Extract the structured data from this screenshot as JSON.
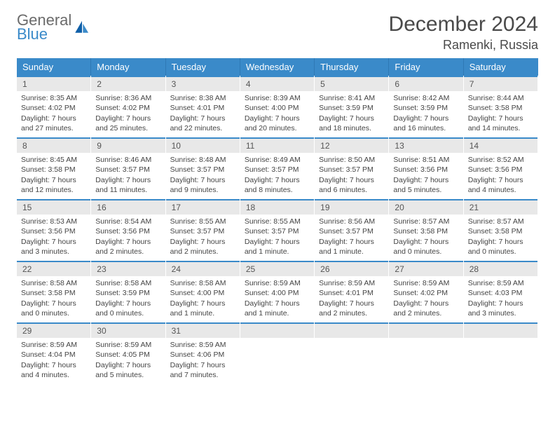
{
  "logo": {
    "line1": "General",
    "line2": "Blue"
  },
  "title": "December 2024",
  "location": "Ramenki, Russia",
  "colors": {
    "header_bg": "#3a8ac9",
    "daynum_bg": "#e8e8e8",
    "text": "#444444",
    "title_text": "#4a4a4a"
  },
  "weekdays": [
    "Sunday",
    "Monday",
    "Tuesday",
    "Wednesday",
    "Thursday",
    "Friday",
    "Saturday"
  ],
  "days": [
    {
      "n": "1",
      "sunrise": "8:35 AM",
      "sunset": "4:02 PM",
      "daylight": "7 hours and 27 minutes."
    },
    {
      "n": "2",
      "sunrise": "8:36 AM",
      "sunset": "4:02 PM",
      "daylight": "7 hours and 25 minutes."
    },
    {
      "n": "3",
      "sunrise": "8:38 AM",
      "sunset": "4:01 PM",
      "daylight": "7 hours and 22 minutes."
    },
    {
      "n": "4",
      "sunrise": "8:39 AM",
      "sunset": "4:00 PM",
      "daylight": "7 hours and 20 minutes."
    },
    {
      "n": "5",
      "sunrise": "8:41 AM",
      "sunset": "3:59 PM",
      "daylight": "7 hours and 18 minutes."
    },
    {
      "n": "6",
      "sunrise": "8:42 AM",
      "sunset": "3:59 PM",
      "daylight": "7 hours and 16 minutes."
    },
    {
      "n": "7",
      "sunrise": "8:44 AM",
      "sunset": "3:58 PM",
      "daylight": "7 hours and 14 minutes."
    },
    {
      "n": "8",
      "sunrise": "8:45 AM",
      "sunset": "3:58 PM",
      "daylight": "7 hours and 12 minutes."
    },
    {
      "n": "9",
      "sunrise": "8:46 AM",
      "sunset": "3:57 PM",
      "daylight": "7 hours and 11 minutes."
    },
    {
      "n": "10",
      "sunrise": "8:48 AM",
      "sunset": "3:57 PM",
      "daylight": "7 hours and 9 minutes."
    },
    {
      "n": "11",
      "sunrise": "8:49 AM",
      "sunset": "3:57 PM",
      "daylight": "7 hours and 8 minutes."
    },
    {
      "n": "12",
      "sunrise": "8:50 AM",
      "sunset": "3:57 PM",
      "daylight": "7 hours and 6 minutes."
    },
    {
      "n": "13",
      "sunrise": "8:51 AM",
      "sunset": "3:56 PM",
      "daylight": "7 hours and 5 minutes."
    },
    {
      "n": "14",
      "sunrise": "8:52 AM",
      "sunset": "3:56 PM",
      "daylight": "7 hours and 4 minutes."
    },
    {
      "n": "15",
      "sunrise": "8:53 AM",
      "sunset": "3:56 PM",
      "daylight": "7 hours and 3 minutes."
    },
    {
      "n": "16",
      "sunrise": "8:54 AM",
      "sunset": "3:56 PM",
      "daylight": "7 hours and 2 minutes."
    },
    {
      "n": "17",
      "sunrise": "8:55 AM",
      "sunset": "3:57 PM",
      "daylight": "7 hours and 2 minutes."
    },
    {
      "n": "18",
      "sunrise": "8:55 AM",
      "sunset": "3:57 PM",
      "daylight": "7 hours and 1 minute."
    },
    {
      "n": "19",
      "sunrise": "8:56 AM",
      "sunset": "3:57 PM",
      "daylight": "7 hours and 1 minute."
    },
    {
      "n": "20",
      "sunrise": "8:57 AM",
      "sunset": "3:58 PM",
      "daylight": "7 hours and 0 minutes."
    },
    {
      "n": "21",
      "sunrise": "8:57 AM",
      "sunset": "3:58 PM",
      "daylight": "7 hours and 0 minutes."
    },
    {
      "n": "22",
      "sunrise": "8:58 AM",
      "sunset": "3:58 PM",
      "daylight": "7 hours and 0 minutes."
    },
    {
      "n": "23",
      "sunrise": "8:58 AM",
      "sunset": "3:59 PM",
      "daylight": "7 hours and 0 minutes."
    },
    {
      "n": "24",
      "sunrise": "8:58 AM",
      "sunset": "4:00 PM",
      "daylight": "7 hours and 1 minute."
    },
    {
      "n": "25",
      "sunrise": "8:59 AM",
      "sunset": "4:00 PM",
      "daylight": "7 hours and 1 minute."
    },
    {
      "n": "26",
      "sunrise": "8:59 AM",
      "sunset": "4:01 PM",
      "daylight": "7 hours and 2 minutes."
    },
    {
      "n": "27",
      "sunrise": "8:59 AM",
      "sunset": "4:02 PM",
      "daylight": "7 hours and 2 minutes."
    },
    {
      "n": "28",
      "sunrise": "8:59 AM",
      "sunset": "4:03 PM",
      "daylight": "7 hours and 3 minutes."
    },
    {
      "n": "29",
      "sunrise": "8:59 AM",
      "sunset": "4:04 PM",
      "daylight": "7 hours and 4 minutes."
    },
    {
      "n": "30",
      "sunrise": "8:59 AM",
      "sunset": "4:05 PM",
      "daylight": "7 hours and 5 minutes."
    },
    {
      "n": "31",
      "sunrise": "8:59 AM",
      "sunset": "4:06 PM",
      "daylight": "7 hours and 7 minutes."
    }
  ],
  "labels": {
    "sunrise": "Sunrise: ",
    "sunset": "Sunset: ",
    "daylight": "Daylight: "
  },
  "grid": {
    "cols": 7,
    "rows": 5,
    "trailing_empty": 4
  }
}
